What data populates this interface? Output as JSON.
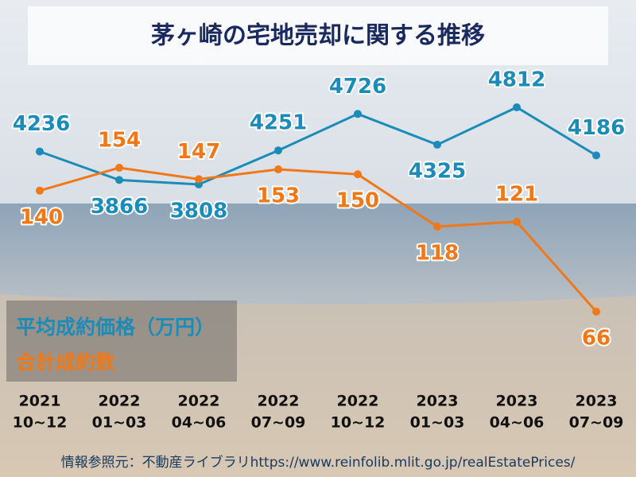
{
  "chart_data": {
    "type": "line",
    "title": "茅ヶ崎の宅地売却に関する推移",
    "categories": [
      [
        "2021",
        "10~12"
      ],
      [
        "2022",
        "01~03"
      ],
      [
        "2022",
        "04~06"
      ],
      [
        "2022",
        "07~09"
      ],
      [
        "2022",
        "10~12"
      ],
      [
        "2023",
        "01~03"
      ],
      [
        "2023",
        "04~06"
      ],
      [
        "2023",
        "07~09"
      ]
    ],
    "series": [
      {
        "name": "平均成約価格（万円）",
        "color": "#1b8bb8",
        "values": [
          4236,
          3866,
          3808,
          4251,
          4726,
          4325,
          4812,
          4186
        ]
      },
      {
        "name": "合計成約数",
        "color": "#f07818",
        "axis": "y2",
        "values": [
          140,
          154,
          147,
          153,
          150,
          118,
          121,
          66
        ]
      }
    ],
    "source": "情報参照元：不動産ライブラリhttps://www.reinfolib.mlit.go.jp/realEstatePrices/"
  }
}
